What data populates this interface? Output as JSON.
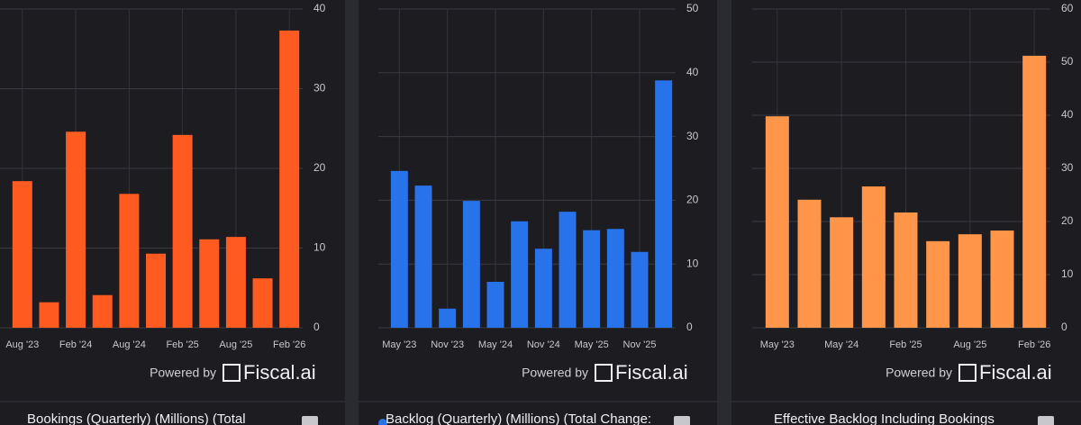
{
  "chart_data": [
    {
      "type": "bar",
      "title": "Bookings (Quarterly) (Millions) (Total",
      "categories": [
        "Aug '23",
        null,
        "Feb '24",
        null,
        "Aug '24",
        null,
        "Feb '25",
        null,
        "Aug '25",
        null,
        "Feb '26"
      ],
      "values": [
        18.4,
        3.2,
        24.6,
        4.1,
        16.8,
        9.3,
        24.2,
        11.1,
        11.4,
        6.2,
        37.3
      ],
      "color": "#ff5a1f",
      "ylim": [
        0,
        40
      ],
      "yticks": [
        0,
        10,
        20,
        30,
        40
      ],
      "grid": true
    },
    {
      "type": "bar",
      "title": "Backlog (Quarterly) (Millions) (Total Change:",
      "categories": [
        "May '23",
        null,
        "Nov '23",
        null,
        "May '24",
        null,
        "Nov '24",
        null,
        "May '25",
        null,
        "Nov '25",
        null
      ],
      "values": [
        24.6,
        22.3,
        3.0,
        19.9,
        7.2,
        16.7,
        12.4,
        18.2,
        15.3,
        15.5,
        11.9,
        38.8
      ],
      "color": "#2872ea",
      "ylim": [
        0,
        50
      ],
      "yticks": [
        0,
        10,
        20,
        30,
        40,
        50
      ],
      "grid": true
    },
    {
      "type": "bar",
      "title": "Effective Backlog Including Bookings",
      "categories": [
        "May '23",
        null,
        "May '24",
        null,
        "Feb '25",
        null,
        "Aug '25",
        null,
        "Feb '26"
      ],
      "values": [
        39.8,
        24.1,
        20.8,
        26.6,
        21.7,
        16.3,
        17.6,
        18.3,
        51.2
      ],
      "color": "#ff9549",
      "ylim": [
        0,
        60
      ],
      "yticks": [
        0,
        10,
        20,
        30,
        40,
        50,
        60
      ],
      "grid": true
    }
  ],
  "powered_by": "Powered by",
  "brand": "Fiscal.ai"
}
